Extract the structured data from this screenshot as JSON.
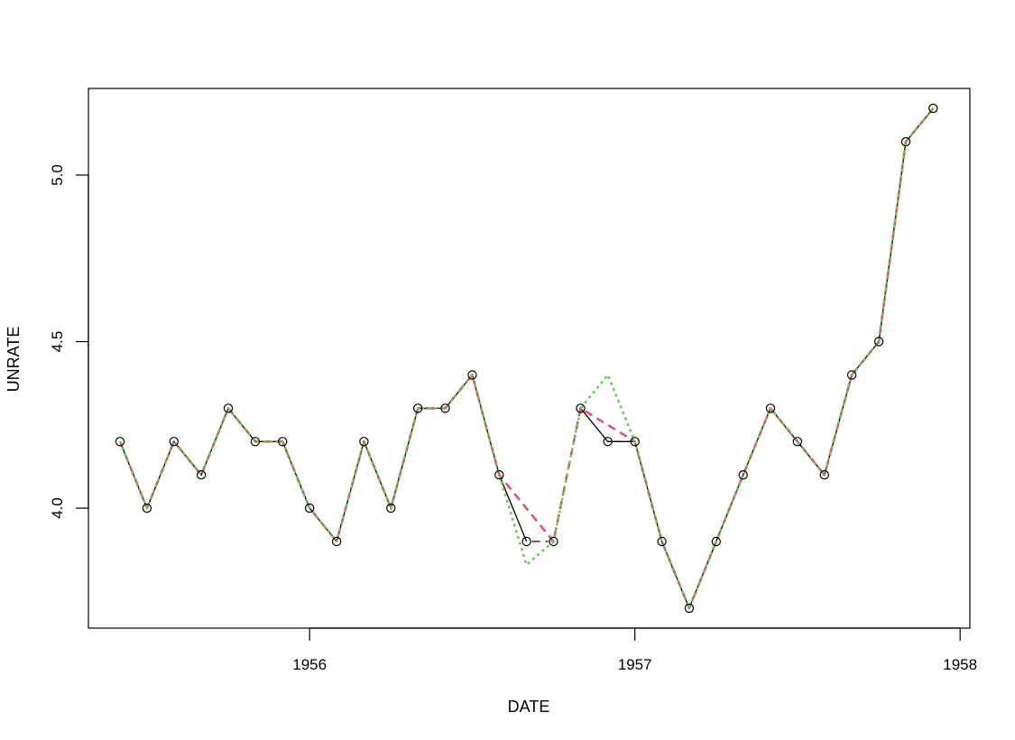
{
  "chart_data": {
    "type": "line",
    "title": "",
    "xlabel": "DATE",
    "ylabel": "UNRATE",
    "xlim": [
      1955.32,
      1958.03
    ],
    "ylim": [
      3.64,
      5.26
    ],
    "x_ticks": [
      {
        "value": 1956,
        "label": "1956"
      },
      {
        "value": 1957,
        "label": "1957"
      },
      {
        "value": 1958,
        "label": "1958"
      }
    ],
    "y_ticks": [
      {
        "value": 4.0,
        "label": "4.0"
      },
      {
        "value": 4.5,
        "label": "4.5"
      },
      {
        "value": 5.0,
        "label": "5.0"
      }
    ],
    "grid": false,
    "legend": "none",
    "colors": {
      "observed": "#000000",
      "series_dashed": "#DF536B",
      "series_dotted": "#61D04F"
    },
    "series": [
      {
        "style": "points-solid-line",
        "color": "#000000",
        "x": [
          1955.417,
          1955.5,
          1955.583,
          1955.667,
          1955.75,
          1955.833,
          1955.917,
          1956.0,
          1956.083,
          1956.167,
          1956.25,
          1956.333,
          1956.417,
          1956.5,
          1956.583,
          1956.667,
          1956.75,
          1956.833,
          1956.917,
          1957.0,
          1957.083,
          1957.167,
          1957.25,
          1957.333,
          1957.417,
          1957.5,
          1957.583,
          1957.667,
          1957.75,
          1957.833,
          1957.917
        ],
        "y": [
          4.2,
          4.0,
          4.2,
          4.1,
          4.3,
          4.2,
          4.2,
          4.0,
          3.9,
          4.2,
          4.0,
          4.3,
          4.3,
          4.4,
          4.1,
          3.9,
          3.9,
          4.3,
          4.2,
          4.2,
          3.9,
          3.7,
          3.9,
          4.1,
          4.3,
          4.2,
          4.1,
          4.4,
          4.5,
          5.1,
          5.2
        ],
        "segments": [
          [
            0,
            14
          ],
          [
            14,
            15
          ],
          [
            17,
            18
          ],
          [
            18,
            30
          ]
        ]
      },
      {
        "style": "dashed",
        "color": "#DF536B",
        "x": [
          1955.417,
          1955.5,
          1955.583,
          1955.667,
          1955.75,
          1955.833,
          1955.917,
          1956.0,
          1956.083,
          1956.167,
          1956.25,
          1956.333,
          1956.417,
          1956.5,
          1956.583,
          1956.75,
          1956.833,
          1957.0,
          1957.083,
          1957.167,
          1957.25,
          1957.333,
          1957.417,
          1957.5,
          1957.583,
          1957.667,
          1957.75,
          1957.833,
          1957.917
        ],
        "y": [
          4.2,
          4.0,
          4.2,
          4.1,
          4.3,
          4.2,
          4.2,
          4.0,
          3.9,
          4.2,
          4.0,
          4.3,
          4.3,
          4.4,
          4.1,
          3.9,
          4.3,
          4.2,
          3.9,
          3.7,
          3.9,
          4.1,
          4.3,
          4.2,
          4.1,
          4.4,
          4.5,
          5.1,
          5.2
        ]
      },
      {
        "style": "dotted",
        "color": "#61D04F",
        "x": [
          1955.417,
          1955.5,
          1955.583,
          1955.667,
          1955.75,
          1955.833,
          1955.917,
          1956.0,
          1956.083,
          1956.167,
          1956.25,
          1956.333,
          1956.417,
          1956.5,
          1956.583,
          1956.667,
          1956.75,
          1956.833,
          1956.917,
          1957.0,
          1957.083,
          1957.167,
          1957.25,
          1957.333,
          1957.417,
          1957.5,
          1957.583,
          1957.667,
          1957.75,
          1957.833,
          1957.917
        ],
        "y": [
          4.2,
          4.0,
          4.2,
          4.1,
          4.3,
          4.2,
          4.2,
          4.0,
          3.9,
          4.2,
          4.0,
          4.3,
          4.3,
          4.4,
          4.1,
          3.83,
          3.9,
          4.3,
          4.4,
          4.2,
          3.9,
          3.7,
          3.9,
          4.1,
          4.3,
          4.2,
          4.1,
          4.4,
          4.5,
          5.1,
          5.2
        ]
      }
    ],
    "extra_segments": [
      {
        "color": "#000000",
        "dash": "dashed",
        "from": [
          1956.667,
          3.9
        ],
        "to": [
          1956.75,
          3.9
        ]
      },
      {
        "color": "#000000",
        "dash": "dashed",
        "from": [
          1956.917,
          4.2
        ],
        "to": [
          1957.0,
          4.2
        ]
      }
    ]
  }
}
